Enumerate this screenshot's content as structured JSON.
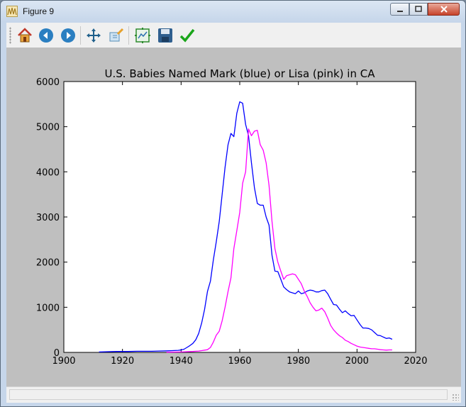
{
  "window": {
    "title": "Figure 9"
  },
  "toolbar": {
    "buttons": [
      {
        "name": "home-icon"
      },
      {
        "name": "back-icon"
      },
      {
        "name": "forward-icon"
      },
      {
        "name": "pan-icon"
      },
      {
        "name": "zoom-icon"
      },
      {
        "name": "configure-subplots-icon"
      },
      {
        "name": "save-icon"
      },
      {
        "name": "edit-axis-icon"
      }
    ]
  },
  "status": {
    "text": ""
  },
  "chart_data": {
    "type": "line",
    "title": "U.S. Babies Named Mark (blue) or Lisa (pink) in CA",
    "xlabel": "",
    "ylabel": "",
    "xlim": [
      1900,
      2020
    ],
    "ylim": [
      0,
      6000
    ],
    "xticks": [
      1900,
      1920,
      1940,
      1960,
      1980,
      2000,
      2020
    ],
    "yticks": [
      0,
      1000,
      2000,
      3000,
      4000,
      5000,
      6000
    ],
    "grid": false,
    "series": [
      {
        "color": "#0000ff",
        "x": [
          1912,
          1915,
          1918,
          1920,
          1922,
          1925,
          1928,
          1930,
          1932,
          1935,
          1937,
          1939,
          1940,
          1941,
          1942,
          1943,
          1944,
          1945,
          1946,
          1947,
          1948,
          1949,
          1950,
          1951,
          1952,
          1953,
          1954,
          1955,
          1956,
          1957,
          1958,
          1959,
          1960,
          1961,
          1962,
          1963,
          1964,
          1965,
          1966,
          1967,
          1968,
          1969,
          1970,
          1971,
          1972,
          1973,
          1974,
          1975,
          1976,
          1977,
          1978,
          1979,
          1980,
          1981,
          1982,
          1983,
          1984,
          1985,
          1986,
          1987,
          1988,
          1989,
          1990,
          1991,
          1992,
          1993,
          1994,
          1995,
          1996,
          1997,
          1998,
          1999,
          2000,
          2001,
          2002,
          2003,
          2004,
          2005,
          2006,
          2007,
          2008,
          2009,
          2010,
          2011,
          2012
        ],
        "y": [
          10,
          15,
          20,
          20,
          20,
          25,
          25,
          25,
          30,
          35,
          40,
          45,
          55,
          70,
          110,
          150,
          200,
          280,
          420,
          650,
          950,
          1350,
          1580,
          2050,
          2450,
          2900,
          3500,
          4100,
          4600,
          4850,
          4780,
          5300,
          5550,
          5520,
          5050,
          4800,
          4200,
          3650,
          3300,
          3260,
          3260,
          3000,
          2820,
          2150,
          1800,
          1790,
          1620,
          1450,
          1390,
          1340,
          1320,
          1300,
          1360,
          1300,
          1320,
          1360,
          1380,
          1370,
          1340,
          1340,
          1370,
          1380,
          1300,
          1180,
          1060,
          1050,
          960,
          880,
          920,
          860,
          810,
          820,
          720,
          620,
          540,
          540,
          530,
          500,
          440,
          380,
          370,
          340,
          310,
          320,
          290
        ]
      },
      {
        "color": "#ff00ff",
        "x": [
          1935,
          1940,
          1942,
          1944,
          1945,
          1946,
          1947,
          1948,
          1949,
          1950,
          1951,
          1952,
          1953,
          1954,
          1955,
          1956,
          1957,
          1958,
          1959,
          1960,
          1961,
          1962,
          1963,
          1964,
          1965,
          1966,
          1967,
          1968,
          1969,
          1970,
          1971,
          1972,
          1973,
          1974,
          1975,
          1976,
          1977,
          1978,
          1979,
          1980,
          1981,
          1982,
          1983,
          1984,
          1985,
          1986,
          1987,
          1988,
          1989,
          1990,
          1991,
          1992,
          1993,
          1994,
          1995,
          1996,
          1997,
          1998,
          1999,
          2000,
          2001,
          2002,
          2003,
          2004,
          2005,
          2006,
          2007,
          2008,
          2009,
          2010,
          2011,
          2012
        ],
        "y": [
          5,
          10,
          15,
          20,
          25,
          30,
          40,
          50,
          60,
          110,
          230,
          380,
          470,
          700,
          1000,
          1350,
          1650,
          2300,
          2700,
          3100,
          3750,
          4000,
          4950,
          4800,
          4900,
          4920,
          4600,
          4480,
          4200,
          3700,
          2900,
          2300,
          2000,
          1800,
          1620,
          1700,
          1720,
          1740,
          1720,
          1620,
          1520,
          1360,
          1240,
          1100,
          1000,
          920,
          940,
          980,
          900,
          760,
          600,
          500,
          430,
          370,
          330,
          270,
          240,
          200,
          170,
          140,
          120,
          110,
          100,
          90,
          80,
          80,
          70,
          60,
          55,
          50,
          55,
          55
        ]
      }
    ]
  }
}
